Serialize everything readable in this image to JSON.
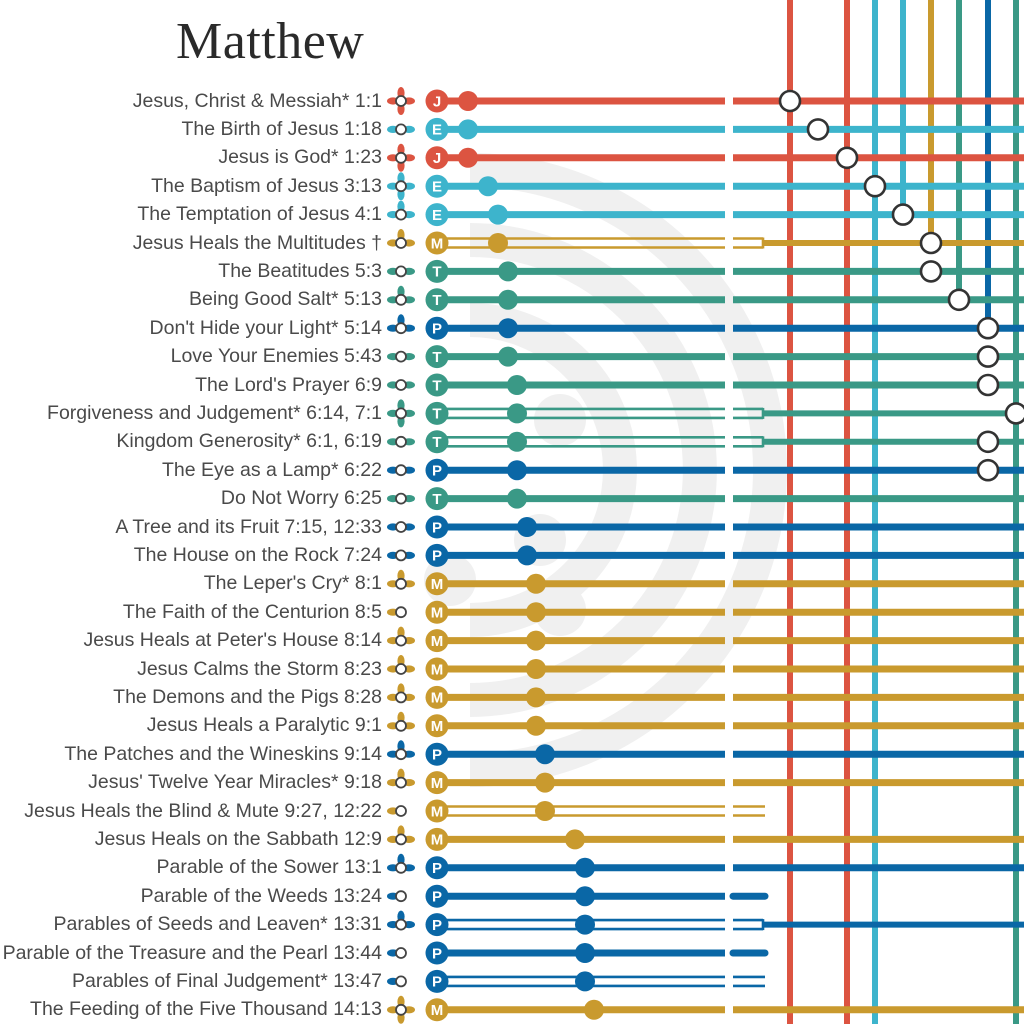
{
  "title": "Matthew",
  "colors": {
    "J": "#dc5441",
    "E": "#3db4cc",
    "M": "#c99a2e",
    "T": "#3a9986",
    "P": "#0a67a6",
    "transfer_stroke": "#333333",
    "watermark": "#f0f0f0"
  },
  "stories": [
    {
      "label": "Jesus, Christ & Messiah* 1:1",
      "badge": "J",
      "icon": "station-cross",
      "line": "solid",
      "end": "full"
    },
    {
      "label": "The Birth of Jesus 1:18",
      "badge": "E",
      "icon": "station-side",
      "line": "solid",
      "end": "full"
    },
    {
      "label": "Jesus is God* 1:23",
      "badge": "J",
      "icon": "station-cross",
      "line": "solid",
      "end": "full"
    },
    {
      "label": "The Baptism of Jesus 3:13",
      "badge": "E",
      "icon": "station-cross",
      "line": "solid",
      "end": "full"
    },
    {
      "label": "The Temptation of Jesus 4:1",
      "badge": "E",
      "icon": "station-up",
      "line": "solid",
      "end": "full"
    },
    {
      "label": "Jesus Heals the Multitudes †",
      "badge": "M",
      "icon": "station-up",
      "line": "double",
      "end": "merge"
    },
    {
      "label": "The Beatitudes 5:3",
      "badge": "T",
      "icon": "station-side",
      "line": "solid",
      "end": "full"
    },
    {
      "label": "Being Good Salt* 5:13",
      "badge": "T",
      "icon": "station-up",
      "line": "solid",
      "end": "full"
    },
    {
      "label": "Don't Hide your Light* 5:14",
      "badge": "P",
      "icon": "station-up",
      "line": "solid",
      "end": "full"
    },
    {
      "label": "Love Your Enemies 5:43",
      "badge": "T",
      "icon": "station-side",
      "line": "solid",
      "end": "full"
    },
    {
      "label": "The Lord's Prayer 6:9",
      "badge": "T",
      "icon": "station-side",
      "line": "solid",
      "end": "full"
    },
    {
      "label": "Forgiveness and Judgement* 6:14, 7:1",
      "badge": "T",
      "icon": "station-cross",
      "line": "double",
      "end": "merge"
    },
    {
      "label": "Kingdom Generosity* 6:1, 6:19",
      "badge": "T",
      "icon": "station-side",
      "line": "double",
      "end": "merge"
    },
    {
      "label": "The Eye as a Lamp* 6:22",
      "badge": "P",
      "icon": "station-side",
      "line": "solid",
      "end": "full"
    },
    {
      "label": "Do Not Worry 6:25",
      "badge": "T",
      "icon": "station-side",
      "line": "solid",
      "end": "full"
    },
    {
      "label": "A Tree and its Fruit 7:15, 12:33",
      "badge": "P",
      "icon": "station-side",
      "line": "solid",
      "end": "full"
    },
    {
      "label": "The House on the Rock 7:24",
      "badge": "P",
      "icon": "station-side",
      "line": "solid",
      "end": "full"
    },
    {
      "label": "The Leper's Cry* 8:1",
      "badge": "M",
      "icon": "station-up",
      "line": "solid",
      "end": "full"
    },
    {
      "label": "The Faith of the Centurion 8:5",
      "badge": "M",
      "icon": "station-left",
      "line": "solid",
      "end": "full"
    },
    {
      "label": "Jesus Heals at Peter's House 8:14",
      "badge": "M",
      "icon": "station-up",
      "line": "solid",
      "end": "full"
    },
    {
      "label": "Jesus Calms the Storm 8:23",
      "badge": "M",
      "icon": "station-up",
      "line": "solid",
      "end": "full"
    },
    {
      "label": "The Demons and the Pigs 8:28",
      "badge": "M",
      "icon": "station-up",
      "line": "solid",
      "end": "full"
    },
    {
      "label": "Jesus Heals a Paralytic 9:1",
      "badge": "M",
      "icon": "station-up",
      "line": "solid",
      "end": "full"
    },
    {
      "label": "The Patches and the Wineskins 9:14",
      "badge": "P",
      "icon": "station-up",
      "line": "solid",
      "end": "full"
    },
    {
      "label": "Jesus' Twelve Year Miracles* 9:18",
      "badge": "M",
      "icon": "station-up",
      "line": "solid",
      "end": "full"
    },
    {
      "label": "Jesus Heals the Blind & Mute 9:27, 12:22",
      "badge": "M",
      "icon": "station-left",
      "line": "double",
      "end": "short"
    },
    {
      "label": "Jesus Heals on the Sabbath 12:9",
      "badge": "M",
      "icon": "station-up",
      "line": "solid",
      "end": "full"
    },
    {
      "label": "Parable of the Sower 13:1",
      "badge": "P",
      "icon": "station-up",
      "line": "solid",
      "end": "full"
    },
    {
      "label": "Parable of the Weeds 13:24",
      "badge": "P",
      "icon": "station-left",
      "line": "solid",
      "end": "short"
    },
    {
      "label": "Parables of Seeds and Leaven* 13:31",
      "badge": "P",
      "icon": "station-up",
      "line": "double",
      "end": "merge"
    },
    {
      "label": "Parable of the Treasure and the Pearl 13:44",
      "badge": "P",
      "icon": "station-left",
      "line": "solid",
      "end": "short"
    },
    {
      "label": "Parables of Final Judgement* 13:47",
      "badge": "P",
      "icon": "station-left",
      "line": "double",
      "end": "short"
    },
    {
      "label": "The Feeding of the Five Thousand 14:13",
      "badge": "M",
      "icon": "station-cross",
      "line": "solid",
      "end": "full"
    }
  ]
}
